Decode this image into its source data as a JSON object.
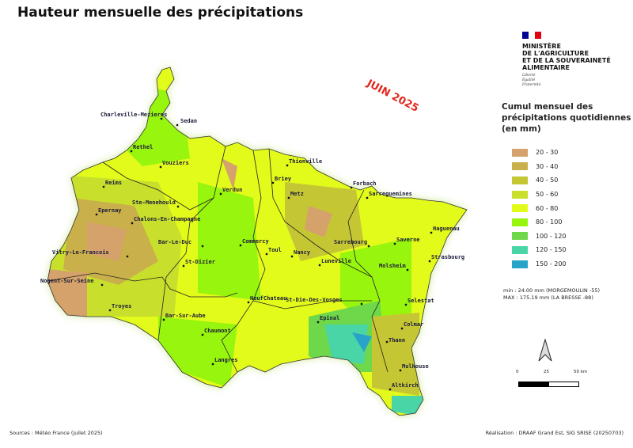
{
  "title": "Hauteur mensuelle des précipitations",
  "month_label": "JUIN 2025",
  "logo": {
    "ministry": [
      "MINISTÈRE",
      "DE L'AGRICULTURE",
      "ET DE LA SOUVERAINETÉ",
      "ALIMENTAIRE"
    ],
    "motto": [
      "Liberté",
      "Égalité",
      "Fraternité"
    ],
    "flag_colors": [
      "#000091",
      "#ffffff",
      "#e1000f"
    ]
  },
  "legend": {
    "title": "Cumul mensuel des précipitations quotidiennes (en mm)",
    "classes": [
      {
        "label": "20 - 30",
        "color": "#d4a26a"
      },
      {
        "label": "30 - 40",
        "color": "#c9b04a"
      },
      {
        "label": "40 - 50",
        "color": "#c5c634"
      },
      {
        "label": "50 - 60",
        "color": "#c8e02c"
      },
      {
        "label": "60 - 80",
        "color": "#e3fb1a"
      },
      {
        "label": "80 - 100",
        "color": "#98f50e"
      },
      {
        "label": "100 - 120",
        "color": "#6fd84a"
      },
      {
        "label": "120 - 150",
        "color": "#4ad5a6"
      },
      {
        "label": "150 - 200",
        "color": "#2aa3c9"
      }
    ]
  },
  "stats": {
    "min": "min : 24.00 mm (MORGEMOULIN -55)",
    "max": "MAX : 175.19 mm (LA BRESSE -88)"
  },
  "scale": {
    "ticks": [
      "0",
      "25",
      "50 km"
    ]
  },
  "cities": [
    "Charleville-Mezieres",
    "Sedan",
    "Rethel",
    "Vouziers",
    "Reims",
    "Ste-Menehould",
    "Epernay",
    "Chalons-En-Champagne",
    "Verdun",
    "Vitry-Le-Francois",
    "Bar-Le-Duc",
    "St-Dizier",
    "Commercy",
    "Toul",
    "Nogent-Sur-Seine",
    "Troyes",
    "Bar-Sur-Aube",
    "Chaumont",
    "Langres",
    "NeufChateau",
    "Thionville",
    "Briey",
    "Metz",
    "Forbach",
    "Sarreguemines",
    "Nancy",
    "Sarrebourg",
    "Luneville",
    "Haguenau",
    "Saverne",
    "Strasbourg",
    "Molsheim",
    "St-Die-Des-Vosges",
    "Epinal",
    "Selestat",
    "Colmar",
    "Thann",
    "Mulhouse",
    "Altkirch"
  ],
  "footer": {
    "source": "Sources : Météo France (juilet 2025)",
    "credit": "Réalisation : DRAAF Grand Est, SIG SRISE (20250703)"
  }
}
